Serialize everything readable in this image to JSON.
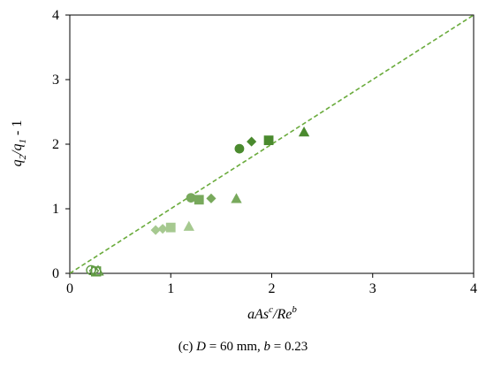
{
  "chart_data": {
    "type": "scatter",
    "xlim": [
      0,
      4
    ],
    "ylim": [
      0,
      4
    ],
    "x_ticks": [
      "0",
      "1",
      "2",
      "3",
      "4"
    ],
    "y_ticks": [
      "0",
      "1",
      "2",
      "3",
      "4"
    ],
    "grid": false,
    "legend": "none",
    "xlabel": {
      "base": "aAs",
      "sup1": "c",
      "mid": "/Re",
      "sup2": "b"
    },
    "ylabel": {
      "q": "q",
      "s2": "2",
      "slash": "/",
      "s1": "1",
      "rest": " - 1"
    },
    "reference_line": {
      "type": "dashed",
      "x": [
        0,
        4
      ],
      "y": [
        0,
        4
      ],
      "color": "#6aab3c"
    },
    "colors": {
      "dark": "#4a8a2e",
      "mid": "#78a95c",
      "light": "#a6c990",
      "outline": "#5f9a42"
    },
    "series": [
      {
        "shape": "circle",
        "shade": "dark",
        "points": [
          [
            1.68,
            1.93
          ]
        ]
      },
      {
        "shape": "diamond",
        "shade": "dark",
        "points": [
          [
            1.8,
            2.04
          ]
        ]
      },
      {
        "shape": "square",
        "shade": "dark",
        "points": [
          [
            1.97,
            2.06
          ]
        ]
      },
      {
        "shape": "triangle",
        "shade": "dark",
        "points": [
          [
            2.32,
            2.18
          ]
        ]
      },
      {
        "shape": "circle",
        "shade": "mid",
        "points": [
          [
            1.2,
            1.17
          ]
        ]
      },
      {
        "shape": "square",
        "shade": "mid",
        "points": [
          [
            1.28,
            1.14
          ]
        ]
      },
      {
        "shape": "diamond",
        "shade": "mid",
        "points": [
          [
            1.4,
            1.16
          ]
        ]
      },
      {
        "shape": "triangle",
        "shade": "mid",
        "points": [
          [
            1.65,
            1.15
          ]
        ]
      },
      {
        "shape": "diamond",
        "shade": "light",
        "points": [
          [
            0.85,
            0.67
          ],
          [
            0.92,
            0.69
          ]
        ]
      },
      {
        "shape": "square",
        "shade": "light",
        "points": [
          [
            1.0,
            0.71
          ]
        ]
      },
      {
        "shape": "triangle",
        "shade": "light",
        "points": [
          [
            1.18,
            0.72
          ]
        ]
      },
      {
        "shape": "circle",
        "shade": "open",
        "points": [
          [
            0.21,
            0.05
          ]
        ]
      },
      {
        "shape": "diamond",
        "shade": "open",
        "points": [
          [
            0.24,
            0.04
          ]
        ]
      },
      {
        "shape": "square",
        "shade": "open",
        "points": [
          [
            0.26,
            0.03
          ]
        ]
      },
      {
        "shape": "triangle",
        "shade": "open",
        "points": [
          [
            0.28,
            0.03
          ]
        ]
      }
    ]
  },
  "caption": {
    "prefix": "(c) ",
    "d_var": "D",
    "d_value": " = 60 mm,  ",
    "b_var": "b",
    "b_value": " = 0.23"
  }
}
